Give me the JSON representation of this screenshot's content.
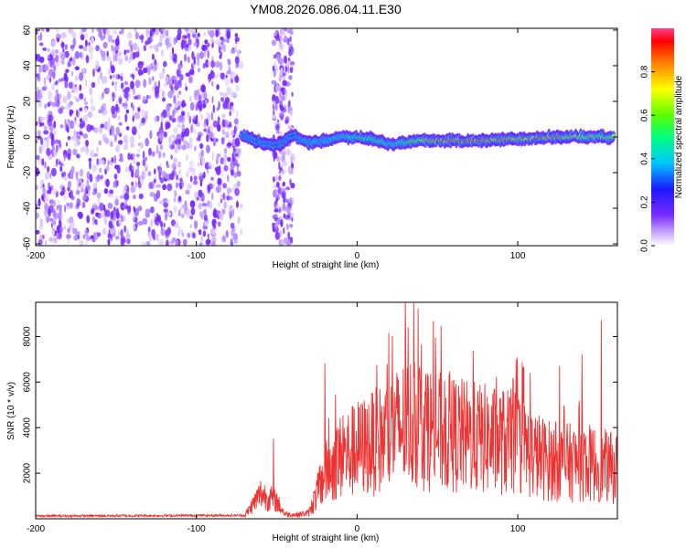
{
  "title": "YM08.2026.086.04.11.E30",
  "chart_data": [
    {
      "type": "heatmap",
      "name": "spectrogram",
      "xlabel": "Height of straight line (km)",
      "ylabel": "Frequency (Hz)",
      "xlim": [
        -200,
        162
      ],
      "ylim": [
        -61,
        61
      ],
      "xticks": [
        -200,
        -100,
        0,
        100
      ],
      "yticks": [
        -60,
        -40,
        -20,
        0,
        20,
        40,
        60
      ],
      "colorbar": {
        "label": "Normalized spectral amplitude",
        "range": [
          0,
          1
        ],
        "ticks": [
          "0.0",
          "0.2",
          "0.4",
          "0.6",
          "0.8"
        ],
        "tick_values": [
          0.0,
          0.2,
          0.4,
          0.6,
          0.8
        ]
      },
      "ridge": {
        "height_km": [
          -72,
          -60,
          -50,
          -40,
          -30,
          -20,
          -10,
          0,
          10,
          20,
          30,
          40,
          50,
          60,
          80,
          100,
          120,
          140,
          160
        ],
        "frequency_hz": [
          1,
          -3,
          -5,
          1,
          -3,
          -2,
          0,
          0,
          -1,
          -4,
          -3,
          -2,
          -2,
          -2,
          -2,
          -1,
          0,
          0,
          0
        ],
        "amplitude": [
          0.35,
          0.32,
          0.3,
          0.35,
          0.38,
          0.42,
          0.45,
          0.5,
          0.55,
          0.45,
          0.55,
          0.7,
          0.85,
          0.9,
          0.9,
          0.85,
          0.95,
          0.65,
          0.7
        ]
      },
      "noise_regions_km": [
        [
          -200,
          -72
        ],
        [
          -52,
          -40
        ]
      ]
    },
    {
      "type": "line",
      "name": "snr",
      "xlabel": "Height of straight line (km)",
      "ylabel": "SNR (10 * v/v)",
      "xlim": [
        -200,
        162
      ],
      "ylim": [
        0,
        9500
      ],
      "xticks": [
        -200,
        -100,
        0,
        100
      ],
      "yticks": [
        2000,
        4000,
        6000,
        8000
      ],
      "color": "#ee3333",
      "envelope": {
        "height_km": [
          -200,
          -70,
          -60,
          -50,
          -45,
          -38,
          -30,
          -25,
          -20,
          -15,
          -10,
          -5,
          0,
          10,
          20,
          25,
          30,
          35,
          40,
          45,
          50,
          60,
          70,
          80,
          90,
          100,
          110,
          120,
          130,
          140,
          150,
          155,
          160
        ],
        "snr": [
          120,
          150,
          1300,
          900,
          250,
          200,
          300,
          1300,
          2300,
          2800,
          3200,
          3400,
          3600,
          3900,
          4300,
          4600,
          4900,
          5000,
          4900,
          4700,
          4500,
          4350,
          4200,
          4100,
          4000,
          3900,
          3300,
          3000,
          2900,
          2900,
          2800,
          2700,
          2600
        ]
      },
      "peaks": [
        {
          "height_km": 30,
          "snr": 9500
        },
        {
          "height_km": 38,
          "snr": 9200
        },
        {
          "height_km": 152,
          "snr": 8700
        },
        {
          "height_km": 22,
          "snr": 8000
        },
        {
          "height_km": -20,
          "snr": 6800
        },
        {
          "height_km": 126,
          "snr": 6700
        },
        {
          "height_km": 140,
          "snr": 7200
        },
        {
          "height_km": -52,
          "snr": 3500
        }
      ]
    }
  ]
}
